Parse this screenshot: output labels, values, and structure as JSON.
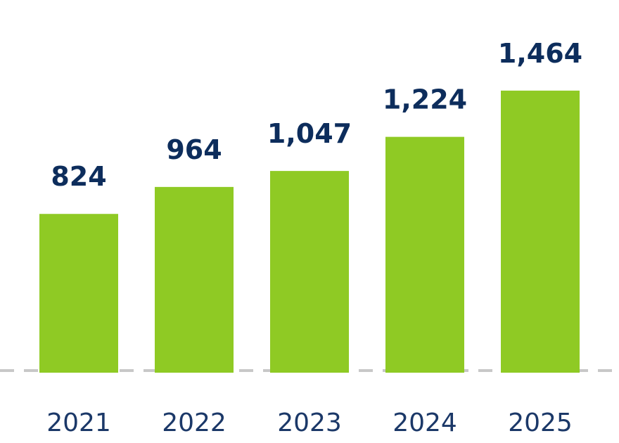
{
  "chart_data": {
    "type": "bar",
    "categories": [
      "2021",
      "2022",
      "2023",
      "2024",
      "2025"
    ],
    "values": [
      824,
      964,
      1047,
      1224,
      1464
    ],
    "value_labels": [
      "824",
      "964",
      "1,047",
      "1,224",
      "1,464"
    ],
    "title": "",
    "xlabel": "",
    "ylabel": "",
    "ylim": [
      0,
      1600
    ],
    "grid": false,
    "legend": "none",
    "baseline": "dashed",
    "colors": {
      "bar": "#8fca24",
      "value_label": "#0d2d5c",
      "tick_label": "#1b3868",
      "baseline": "#c8c8c8"
    }
  }
}
